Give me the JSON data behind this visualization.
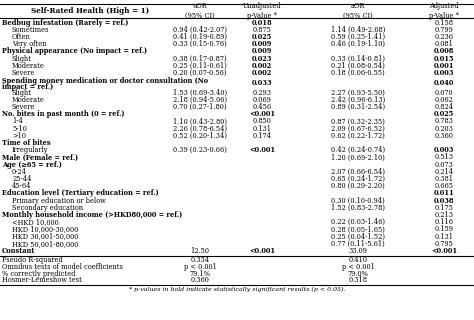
{
  "title": "Self-Rated Health (High = 1)",
  "rows": [
    {
      "label": "Bedbug infestation (Rarely = ref.)",
      "indent": 0,
      "uOR": "",
      "uP": "0.018",
      "aOR": "",
      "aP": "0.158",
      "uP_bold": true,
      "aP_bold": false
    },
    {
      "label": "Sometimes",
      "indent": 1,
      "uOR": "0.94 (0.42-2.07)",
      "uP": "0.875",
      "aOR": "1.14 (0.49-2.68)",
      "aP": "0.799",
      "uP_bold": false,
      "aP_bold": false
    },
    {
      "label": "Often",
      "indent": 1,
      "uOR": "0.41 (0.19-0.89)",
      "uP": "0.025",
      "aOR": "0.59 (0.25-1.41)",
      "aP": "0.236",
      "uP_bold": true,
      "aP_bold": false
    },
    {
      "label": "Very often",
      "indent": 1,
      "uOR": "0.33 (0.15-0.76)",
      "uP": "0.009",
      "aOR": "0.46 (0.19-1.10)",
      "aP": "0.081",
      "uP_bold": true,
      "aP_bold": false
    },
    {
      "label": "Physical appearance (No impact = ref.)",
      "indent": 0,
      "uOR": "",
      "uP": "0.009",
      "aOR": "",
      "aP": "0.008",
      "uP_bold": true,
      "aP_bold": true
    },
    {
      "label": "Slight",
      "indent": 1,
      "uOR": "0.38 (0.17-0.87)",
      "uP": "0.023",
      "aOR": "0.33 (0.14-0.81)",
      "aP": "0.015",
      "uP_bold": true,
      "aP_bold": true
    },
    {
      "label": "Moderate",
      "indent": 1,
      "uOR": "0.25 (0.11-0.61)",
      "uP": "0.002",
      "aOR": "0.21 (0.08-0.54)",
      "aP": "0.001",
      "uP_bold": true,
      "aP_bold": true
    },
    {
      "label": "Severe",
      "indent": 1,
      "uOR": "0.20 (0.07-0.56)",
      "uP": "0.002",
      "aOR": "0.18 (0.06-0.55)",
      "aP": "0.003",
      "uP_bold": true,
      "aP_bold": true
    },
    {
      "label": "Spending money medication or doctor consultation (No",
      "indent": 0,
      "uOR": "",
      "uP": "0.033",
      "aOR": "",
      "aP": "0.040",
      "uP_bold": true,
      "aP_bold": true,
      "extra_line": "impact = ref.)"
    },
    {
      "label": "Slight",
      "indent": 1,
      "uOR": "1.53 (0.69-3.40)",
      "uP": "0.293",
      "aOR": "2.27 (0.93-5.50)",
      "aP": "0.070",
      "uP_bold": false,
      "aP_bold": false
    },
    {
      "label": "Moderate",
      "indent": 1,
      "uOR": "2.18 (0.94-5.06)",
      "uP": "0.069",
      "aOR": "2.42 (0.96-6.13)",
      "aP": "0.062",
      "uP_bold": false,
      "aP_bold": false
    },
    {
      "label": "Severe",
      "indent": 1,
      "uOR": "0.70 (0.27-1.80)",
      "uP": "0.456",
      "aOR": "0.89 (0.31-2.54)",
      "aP": "0.824",
      "uP_bold": false,
      "aP_bold": false
    },
    {
      "label": "No. bites in past month (0 = ref.)",
      "indent": 0,
      "uOR": "",
      "uP": "<0.001",
      "aOR": "",
      "aP": "0.025",
      "uP_bold": true,
      "aP_bold": true
    },
    {
      "label": "1-4",
      "indent": 1,
      "uOR": "1.10 (0.43-2.80)",
      "uP": "0.850",
      "aOR": "0.87 (0.32-2.35)",
      "aP": "0.783",
      "uP_bold": false,
      "aP_bold": false
    },
    {
      "label": "5-10",
      "indent": 1,
      "uOR": "2.26 (0.78-6.54)",
      "uP": "0.131",
      "aOR": "2.09 (0.67-6.52)",
      "aP": "0.203",
      "uP_bold": false,
      "aP_bold": false
    },
    {
      "label": ">10",
      "indent": 1,
      "uOR": "0.52 (0.20-1.34)",
      "uP": "0.174",
      "aOR": "0.62 (0.22-1.72)",
      "aP": "0.360",
      "uP_bold": false,
      "aP_bold": false
    },
    {
      "label": "Time of bites",
      "indent": 0,
      "uOR": "",
      "uP": "",
      "aOR": "",
      "aP": "",
      "uP_bold": false,
      "aP_bold": false
    },
    {
      "label": "Irregularly",
      "indent": 1,
      "uOR": "0.39 (0.23-0.66)",
      "uP": "<0.001",
      "aOR": "0.42 (0.24-0.74)",
      "aP": "0.003",
      "uP_bold": true,
      "aP_bold": true
    },
    {
      "label": "Male (Female = ref.)",
      "indent": 0,
      "uOR": "",
      "uP": "",
      "aOR": "1.20 (0.69-2.10)",
      "aP": "0.513",
      "uP_bold": false,
      "aP_bold": false
    },
    {
      "label": "Age (≥65 = ref.)",
      "indent": 0,
      "uOR": "",
      "uP": "",
      "aOR": "",
      "aP": "0.073",
      "uP_bold": false,
      "aP_bold": false
    },
    {
      "label": "0-24",
      "indent": 1,
      "uOR": "",
      "uP": "",
      "aOR": "2.07 (0.66-6.54)",
      "aP": "0.214",
      "uP_bold": false,
      "aP_bold": false
    },
    {
      "label": "25-44",
      "indent": 1,
      "uOR": "",
      "uP": "",
      "aOR": "0.65 (0.24-1.72)",
      "aP": "0.381",
      "uP_bold": false,
      "aP_bold": false
    },
    {
      "label": "45-64",
      "indent": 1,
      "uOR": "",
      "uP": "",
      "aOR": "0.80 (0.29-2.20)",
      "aP": "0.665",
      "uP_bold": false,
      "aP_bold": false
    },
    {
      "label": "Education level (Tertiary education = ref.)",
      "indent": 0,
      "uOR": "",
      "uP": "",
      "aOR": "",
      "aP": "0.011",
      "uP_bold": false,
      "aP_bold": true
    },
    {
      "label": "Primary education or below",
      "indent": 1,
      "uOR": "",
      "uP": "",
      "aOR": "0.30 (0.10-0.94)",
      "aP": "0.038",
      "uP_bold": false,
      "aP_bold": true
    },
    {
      "label": "Secondary education",
      "indent": 1,
      "uOR": "",
      "uP": "",
      "aOR": "1.52 (0.83-2.78)",
      "aP": "0.175",
      "uP_bold": false,
      "aP_bold": false
    },
    {
      "label": "Monthly household income (>HKD80,000 = ref.)",
      "indent": 0,
      "uOR": "",
      "uP": "",
      "aOR": "",
      "aP": "0.213",
      "uP_bold": false,
      "aP_bold": false
    },
    {
      "label": "<HKD 10,000",
      "indent": 1,
      "uOR": "",
      "uP": "",
      "aOR": "0.22 (0.03-1.46)",
      "aP": "0.116",
      "uP_bold": false,
      "aP_bold": false
    },
    {
      "label": "HKD 10,000-30,000",
      "indent": 1,
      "uOR": "",
      "uP": "",
      "aOR": "0.28 (0.05-1.65)",
      "aP": "0.159",
      "uP_bold": false,
      "aP_bold": false
    },
    {
      "label": "HKD 30,001-50,000",
      "indent": 1,
      "uOR": "",
      "uP": "",
      "aOR": "0.25 (0.04-1.52)",
      "aP": "0.131",
      "uP_bold": false,
      "aP_bold": false
    },
    {
      "label": "HKD 50,001-80,000",
      "indent": 1,
      "uOR": "",
      "uP": "",
      "aOR": "0.77 (0.11-5.61)",
      "aP": "0.795",
      "uP_bold": false,
      "aP_bold": false
    },
    {
      "label": "Constant",
      "indent": 0,
      "uOR": "12.50",
      "uP": "<0.001",
      "aOR": "33.09",
      "aP": "<0.001",
      "uP_bold": true,
      "aP_bold": true
    }
  ],
  "footer_rows": [
    {
      "label": "Pseudo R-squared",
      "uVal": "0.334",
      "aVal": "0.410"
    },
    {
      "label": "Omnibus tests of model coefficients",
      "uVal": "p < 0.001",
      "aVal": "p < 0.001"
    },
    {
      "label": "% correctly predicted",
      "uVal": "79.1%",
      "aVal": "79.0%"
    },
    {
      "label": "Hosmer-Lemeshow test",
      "uVal": "0.360",
      "aVal": "0.318"
    }
  ],
  "footnote": "* p-values in bold indicate statistically significant results (p < 0.05).",
  "bg_color": "#ffffff",
  "font_size": 4.8,
  "header_font_size": 5.2
}
